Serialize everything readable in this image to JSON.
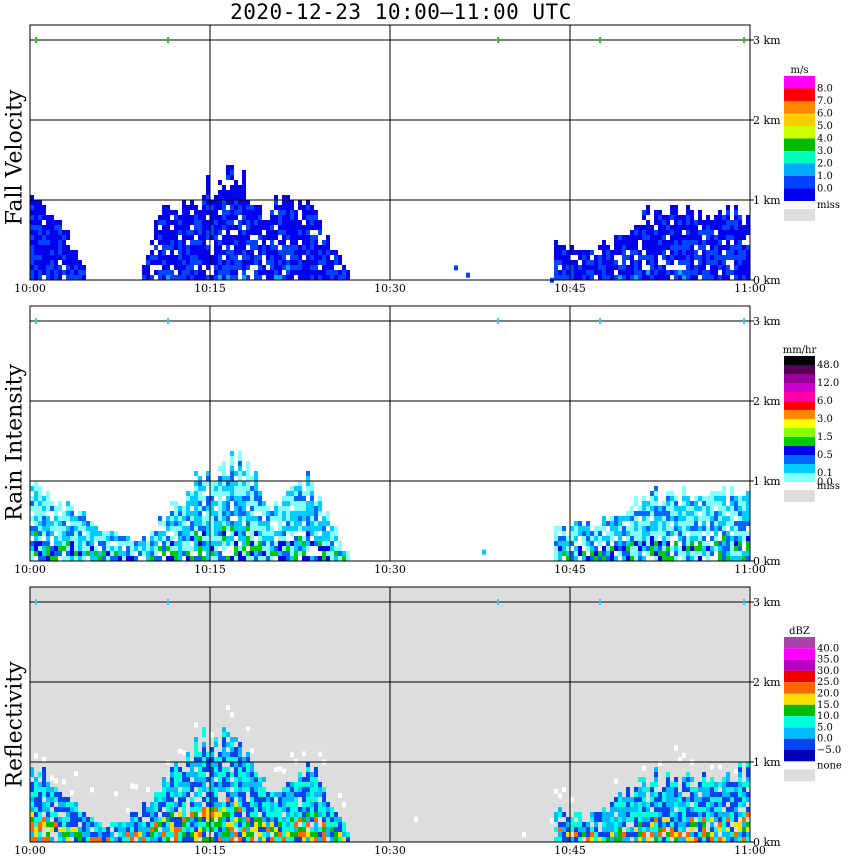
{
  "title": "2020-12-23   10:00–11:00 UTC",
  "time_ticks": [
    "10:00",
    "10:15",
    "10:30",
    "10:45",
    "11:00"
  ],
  "height_ticks": [
    "0 km",
    "1 km",
    "2 km",
    "3 km"
  ],
  "colors": {
    "grid": "#000000",
    "missing_bg": "#dddddd",
    "white": "#ffffff"
  },
  "chart_data": [
    {
      "type": "heatmap",
      "panel": "fall_velocity",
      "ylabel": "Fall Velocity",
      "x": {
        "range": [
          "10:00",
          "11:00"
        ],
        "ticks": [
          "10:00",
          "10:15",
          "10:30",
          "10:45",
          "11:00"
        ]
      },
      "y": {
        "range_km": [
          0,
          3
        ],
        "ticks": [
          "0 km",
          "1 km",
          "2 km",
          "3 km"
        ]
      },
      "legend": {
        "unit": "m/s",
        "labels": [
          "8.0",
          "7.0",
          "6.0",
          "5.0",
          "4.0",
          "3.0",
          "2.0",
          "1.0",
          "0.0"
        ],
        "colors": [
          "#ff00ff",
          "#ff0000",
          "#ff8800",
          "#ffcc00",
          "#ccff00",
          "#00bb00",
          "#00ffbb",
          "#00aaff",
          "#0044ff",
          "#0000ee"
        ],
        "missing_label": "miss",
        "missing_color": "#dddddd"
      },
      "background": "#ffffff",
      "echo_tops_km": [
        {
          "t": 0.0,
          "top": 1.05
        },
        {
          "t": 2.5,
          "top": 0.7
        },
        {
          "t": 5.0,
          "top": 0.05
        },
        {
          "t": 9.0,
          "top": 0.05
        },
        {
          "t": 10.5,
          "top": 0.8
        },
        {
          "t": 13.5,
          "top": 1.0
        },
        {
          "t": 16.5,
          "top": 1.45
        },
        {
          "t": 19.5,
          "top": 0.9
        },
        {
          "t": 22.5,
          "top": 1.1
        },
        {
          "t": 26.5,
          "top": 0.1
        },
        {
          "t": 43.5,
          "top": 0.5
        },
        {
          "t": 47.0,
          "top": 0.4
        },
        {
          "t": 51.0,
          "top": 0.85
        },
        {
          "t": 55.0,
          "top": 0.85
        },
        {
          "t": 60.0,
          "top": 0.85
        }
      ]
    },
    {
      "type": "heatmap",
      "panel": "rain_intensity",
      "ylabel": "Rain Intensity",
      "x": {
        "range": [
          "10:00",
          "11:00"
        ],
        "ticks": [
          "10:00",
          "10:15",
          "10:30",
          "10:45",
          "11:00"
        ]
      },
      "y": {
        "range_km": [
          0,
          3
        ],
        "ticks": [
          "0 km",
          "1 km",
          "2 km",
          "3 km"
        ]
      },
      "legend": {
        "unit": "mm/hr",
        "labels": [
          "48.0",
          "",
          "12.0",
          "",
          "6.0",
          "",
          "3.0",
          "",
          "1.5",
          "",
          "0.5",
          "",
          "0.1",
          "0.0"
        ],
        "colors": [
          "#000000",
          "#550055",
          "#990099",
          "#cc00cc",
          "#ff00aa",
          "#ff0000",
          "#ff8800",
          "#ffff00",
          "#88ff00",
          "#00cc00",
          "#0000ee",
          "#0066ff",
          "#00ccff",
          "#88ffff"
        ],
        "missing_label": "miss",
        "missing_color": "#dddddd"
      },
      "background": "#ffffff",
      "echo_tops_km": [
        {
          "t": 0.0,
          "top": 1.0
        },
        {
          "t": 3.0,
          "top": 0.7
        },
        {
          "t": 6.0,
          "top": 0.4
        },
        {
          "t": 9.5,
          "top": 0.3
        },
        {
          "t": 14.0,
          "top": 1.1
        },
        {
          "t": 17.5,
          "top": 1.35
        },
        {
          "t": 20.0,
          "top": 0.7
        },
        {
          "t": 23.0,
          "top": 1.05
        },
        {
          "t": 26.5,
          "top": 0.1
        },
        {
          "t": 43.5,
          "top": 0.5
        },
        {
          "t": 47.0,
          "top": 0.5
        },
        {
          "t": 51.5,
          "top": 0.85
        },
        {
          "t": 60.0,
          "top": 0.85
        }
      ]
    },
    {
      "type": "heatmap",
      "panel": "reflectivity",
      "ylabel": "Reflectivity",
      "x": {
        "range": [
          "10:00",
          "11:00"
        ],
        "ticks": [
          "10:00",
          "10:15",
          "10:30",
          "10:45",
          "11:00"
        ]
      },
      "y": {
        "range_km": [
          0,
          3
        ],
        "ticks": [
          "0 km",
          "1 km",
          "2 km",
          "3 km"
        ]
      },
      "legend": {
        "unit": "dBZ",
        "labels": [
          "40.0",
          "35.0",
          "30.0",
          "25.0",
          "20.0",
          "15.0",
          "10.0",
          "5.0",
          "0.0",
          "−5.0"
        ],
        "colors": [
          "#aa44aa",
          "#ff00ff",
          "#bb00bb",
          "#ee0000",
          "#ff6600",
          "#ffdd00",
          "#00bb00",
          "#00ffdd",
          "#00bbff",
          "#0044ee",
          "#0000bb"
        ],
        "missing_label": "none",
        "missing_color": "#dddddd"
      },
      "background": "#dddddd",
      "echo_tops_km": [
        {
          "t": 0.0,
          "top": 1.05
        },
        {
          "t": 3.0,
          "top": 0.6
        },
        {
          "t": 6.0,
          "top": 0.2
        },
        {
          "t": 9.0,
          "top": 0.4
        },
        {
          "t": 14.5,
          "top": 1.35
        },
        {
          "t": 17.5,
          "top": 1.35
        },
        {
          "t": 20.0,
          "top": 0.6
        },
        {
          "t": 23.0,
          "top": 1.0
        },
        {
          "t": 26.5,
          "top": 0.1
        },
        {
          "t": 43.5,
          "top": 0.4
        },
        {
          "t": 47.0,
          "top": 0.4
        },
        {
          "t": 51.5,
          "top": 0.85
        },
        {
          "t": 60.0,
          "top": 0.9
        }
      ]
    }
  ]
}
